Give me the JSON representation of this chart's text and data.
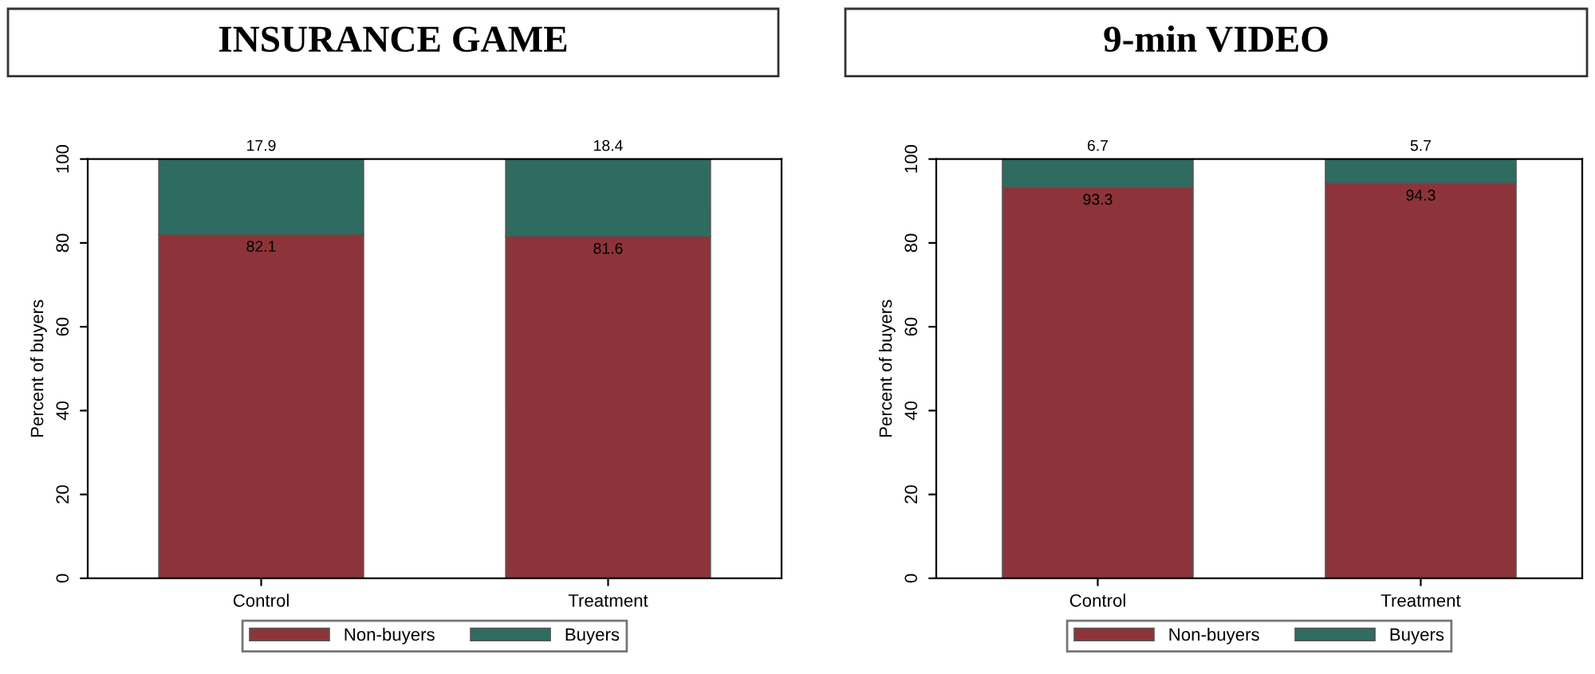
{
  "chart_data": [
    {
      "type": "bar",
      "title": "INSURANCE GAME",
      "ylabel": "Percent of buyers",
      "categories": [
        "Control",
        "Treatment"
      ],
      "stacked": true,
      "series": [
        {
          "name": "Non-buyers",
          "color": "#8c3439",
          "values": [
            82.1,
            81.6
          ]
        },
        {
          "name": "Buyers",
          "color": "#2e6b60",
          "values": [
            17.9,
            18.4
          ]
        }
      ],
      "ylim": [
        0,
        100
      ],
      "yticks": [
        0,
        20,
        40,
        60,
        80,
        100
      ],
      "data_labels": true,
      "legend": "bottom",
      "grid": false
    },
    {
      "type": "bar",
      "title": "9-min VIDEO",
      "ylabel": "Percent of buyers",
      "categories": [
        "Control",
        "Treatment"
      ],
      "stacked": true,
      "series": [
        {
          "name": "Non-buyers",
          "color": "#8c3439",
          "values": [
            93.3,
            94.3
          ]
        },
        {
          "name": "Buyers",
          "color": "#2e6b60",
          "values": [
            6.7,
            5.7
          ]
        }
      ],
      "ylim": [
        0,
        100
      ],
      "yticks": [
        0,
        20,
        40,
        60,
        80,
        100
      ],
      "data_labels": true,
      "legend": "bottom",
      "grid": false
    }
  ]
}
